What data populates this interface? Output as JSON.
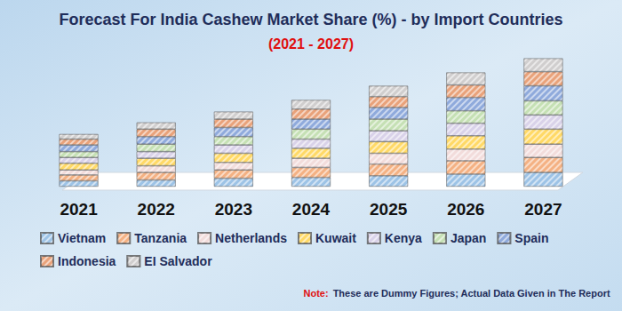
{
  "chart_data": {
    "type": "bar",
    "title": "Forecast For India Cashew Market Share (%) - by Import Countries",
    "subtitle": "(2021 - 2027)",
    "annotations": [
      {
        "label": "Note:",
        "text": "These are Dummy Figures; Actual Data Given in The Report"
      }
    ],
    "categories": [
      "2021",
      "2022",
      "2023",
      "2024",
      "2025",
      "2026",
      "2027"
    ],
    "series": [
      {
        "name": "Vietnam",
        "color": "#9dc3e6",
        "values": [
          7,
          8,
          10,
          11,
          13,
          15,
          17
        ]
      },
      {
        "name": "Tanzania",
        "color": "#f4b183",
        "values": [
          7,
          9,
          10,
          12,
          14,
          16,
          18
        ]
      },
      {
        "name": "Netherlands",
        "color": "#f2dcdb",
        "values": [
          6,
          8,
          9,
          11,
          13,
          14,
          16
        ]
      },
      {
        "name": "Kuwait",
        "color": "#ffd966",
        "values": [
          8,
          9,
          11,
          12,
          14,
          16,
          18
        ]
      },
      {
        "name": "Kenya",
        "color": "#d9d2e9",
        "values": [
          7,
          8,
          10,
          11,
          13,
          15,
          17
        ]
      },
      {
        "name": "Japan",
        "color": "#c5e0b4",
        "values": [
          7,
          9,
          10,
          12,
          14,
          15,
          17
        ]
      },
      {
        "name": "Spain",
        "color": "#8faadc",
        "values": [
          8,
          9,
          11,
          12,
          14,
          16,
          18
        ]
      },
      {
        "name": "Indonesia",
        "color": "#e9a27a",
        "values": [
          7,
          9,
          10,
          12,
          13,
          15,
          17
        ]
      },
      {
        "name": "EI Salvador",
        "color": "#d0cece",
        "values": [
          6,
          8,
          9,
          11,
          13,
          15,
          16
        ]
      }
    ],
    "ylim": [
      0,
      160
    ],
    "stacked": true,
    "grid": false,
    "tick_labels": "x",
    "legend": "bottom-left"
  }
}
